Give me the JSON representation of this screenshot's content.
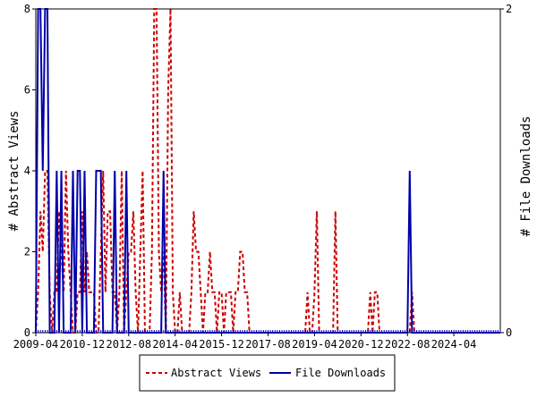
{
  "chart_data": {
    "type": "line",
    "title": "",
    "xlabel": "",
    "ylabel_left": "# Abstract Views",
    "ylabel_right": "# File Downloads",
    "ylim_left": [
      0,
      8
    ],
    "ylim_right": [
      0,
      2
    ],
    "yticks_left": [
      "0",
      "2",
      "4",
      "6",
      "8"
    ],
    "yticks_right": [
      "0",
      "2"
    ],
    "xlim": [
      "2009-04",
      "2025-12"
    ],
    "xticks": [
      "2009-04",
      "2010-12",
      "2012-08",
      "2014-04",
      "2015-12",
      "2017-08",
      "2019-04",
      "2020-12",
      "2022-08",
      "2024-04"
    ],
    "grid": false,
    "legend_position": "bottom",
    "series": [
      {
        "name": "Abstract Views",
        "axis": "left",
        "color": "#cc0000",
        "style": "dashed",
        "points": [
          [
            "2009-04",
            0
          ],
          [
            "2009-05",
            1
          ],
          [
            "2009-06",
            3
          ],
          [
            "2009-07",
            2
          ],
          [
            "2009-08",
            4
          ],
          [
            "2009-09",
            4
          ],
          [
            "2009-10",
            1
          ],
          [
            "2009-11",
            0
          ],
          [
            "2009-12",
            1
          ],
          [
            "2010-01",
            1
          ],
          [
            "2010-02",
            3
          ],
          [
            "2010-03",
            2
          ],
          [
            "2010-04",
            1
          ],
          [
            "2010-05",
            4
          ],
          [
            "2010-06",
            2
          ],
          [
            "2010-07",
            1
          ],
          [
            "2010-08",
            0
          ],
          [
            "2010-09",
            0
          ],
          [
            "2010-10",
            1
          ],
          [
            "2010-11",
            1
          ],
          [
            "2010-12",
            3
          ],
          [
            "2010-13",
            1
          ],
          [
            "2011-01",
            1
          ],
          [
            "2011-02",
            2
          ],
          [
            "2011-03",
            1
          ],
          [
            "2011-04",
            1
          ],
          [
            "2011-05",
            1
          ],
          [
            "2011-06",
            0
          ],
          [
            "2011-07",
            0
          ],
          [
            "2011-08",
            2
          ],
          [
            "2011-09",
            4
          ],
          [
            "2011-10",
            1
          ],
          [
            "2011-11",
            3
          ],
          [
            "2011-12",
            3
          ],
          [
            "2012-01",
            1
          ],
          [
            "2012-02",
            1
          ],
          [
            "2012-03",
            0
          ],
          [
            "2012-04",
            1
          ],
          [
            "2012-05",
            4
          ],
          [
            "2012-06",
            0
          ],
          [
            "2012-07",
            1
          ],
          [
            "2012-08",
            2
          ],
          [
            "2012-09",
            2
          ],
          [
            "2012-10",
            3
          ],
          [
            "2012-11",
            1
          ],
          [
            "2012-12",
            0
          ],
          [
            "2013-01",
            2
          ],
          [
            "2013-02",
            4
          ],
          [
            "2013-03",
            0
          ],
          [
            "2013-04",
            0
          ],
          [
            "2013-05",
            0
          ],
          [
            "2013-06",
            2
          ],
          [
            "2013-07",
            8
          ],
          [
            "2013-08",
            8
          ],
          [
            "2013-09",
            2
          ],
          [
            "2013-10",
            1
          ],
          [
            "2013-11",
            2
          ],
          [
            "2013-12",
            0
          ],
          [
            "2014-01",
            6
          ],
          [
            "2014-02",
            8
          ],
          [
            "2014-03",
            1
          ],
          [
            "2014-04",
            0
          ],
          [
            "2014-05",
            0
          ],
          [
            "2014-06",
            1
          ],
          [
            "2014-07",
            0
          ],
          [
            "2014-08",
            0
          ],
          [
            "2014-09",
            0
          ],
          [
            "2014-10",
            0
          ],
          [
            "2014-11",
            1
          ],
          [
            "2014-12",
            3
          ],
          [
            "2015-01",
            2
          ],
          [
            "2015-02",
            2
          ],
          [
            "2015-03",
            1
          ],
          [
            "2015-04",
            0
          ],
          [
            "2015-05",
            1
          ],
          [
            "2015-06",
            1
          ],
          [
            "2015-07",
            2
          ],
          [
            "2015-08",
            1
          ],
          [
            "2015-09",
            1
          ],
          [
            "2015-10",
            0
          ],
          [
            "2015-11",
            1
          ],
          [
            "2015-12",
            1
          ],
          [
            "2016-01",
            0
          ],
          [
            "2016-02",
            1
          ],
          [
            "2016-03",
            1
          ],
          [
            "2016-04",
            1
          ],
          [
            "2016-05",
            0
          ],
          [
            "2016-06",
            1
          ],
          [
            "2016-07",
            1
          ],
          [
            "2016-08",
            2
          ],
          [
            "2016-09",
            2
          ],
          [
            "2016-10",
            1
          ],
          [
            "2016-11",
            1
          ],
          [
            "2016-12",
            0
          ],
          [
            "2018-12",
            0
          ],
          [
            "2019-01",
            1
          ],
          [
            "2019-02",
            0
          ],
          [
            "2019-03",
            0
          ],
          [
            "2019-04",
            1
          ],
          [
            "2019-05",
            3
          ],
          [
            "2019-06",
            0
          ],
          [
            "2019-12",
            0
          ],
          [
            "2020-01",
            3
          ],
          [
            "2020-02",
            0
          ],
          [
            "2021-03",
            0
          ],
          [
            "2021-04",
            1
          ],
          [
            "2021-05",
            0
          ],
          [
            "2021-06",
            1
          ],
          [
            "2021-07",
            1
          ],
          [
            "2021-08",
            0
          ],
          [
            "2022-09",
            0
          ],
          [
            "2022-10",
            1
          ],
          [
            "2022-11",
            0
          ],
          [
            "2025-12",
            0
          ]
        ]
      },
      {
        "name": "File Downloads",
        "axis": "right",
        "color": "#0000aa",
        "style": "solid",
        "points": [
          [
            "2009-04",
            0
          ],
          [
            "2009-05",
            2
          ],
          [
            "2009-06",
            2
          ],
          [
            "2009-07",
            1
          ],
          [
            "2009-08",
            2
          ],
          [
            "2009-09",
            2
          ],
          [
            "2009-10",
            0
          ],
          [
            "2009-11",
            0
          ],
          [
            "2009-12",
            0
          ],
          [
            "2010-01",
            1
          ],
          [
            "2010-02",
            0
          ],
          [
            "2010-03",
            1
          ],
          [
            "2010-04",
            0
          ],
          [
            "2010-05",
            0
          ],
          [
            "2010-06",
            0
          ],
          [
            "2010-07",
            0
          ],
          [
            "2010-08",
            1
          ],
          [
            "2010-09",
            0
          ],
          [
            "2010-10",
            1
          ],
          [
            "2010-11",
            1
          ],
          [
            "2010-12",
            0
          ],
          [
            "2011-01",
            1
          ],
          [
            "2011-02",
            0
          ],
          [
            "2011-03",
            0
          ],
          [
            "2011-04",
            0
          ],
          [
            "2011-05",
            0
          ],
          [
            "2011-06",
            1
          ],
          [
            "2011-07",
            1
          ],
          [
            "2011-08",
            1
          ],
          [
            "2011-09",
            0
          ],
          [
            "2011-10",
            0
          ],
          [
            "2011-11",
            0
          ],
          [
            "2011-12",
            0
          ],
          [
            "2012-01",
            0
          ],
          [
            "2012-02",
            1
          ],
          [
            "2012-03",
            0
          ],
          [
            "2012-04",
            0
          ],
          [
            "2012-05",
            0
          ],
          [
            "2012-06",
            0
          ],
          [
            "2012-07",
            1
          ],
          [
            "2012-08",
            0
          ],
          [
            "2012-09",
            0
          ],
          [
            "2012-10",
            0
          ],
          [
            "2012-11",
            0
          ],
          [
            "2012-12",
            0
          ],
          [
            "2013-01",
            0
          ],
          [
            "2013-02",
            0
          ],
          [
            "2013-03",
            0
          ],
          [
            "2013-04",
            0
          ],
          [
            "2013-05",
            0
          ],
          [
            "2013-06",
            0
          ],
          [
            "2013-07",
            0
          ],
          [
            "2013-08",
            0
          ],
          [
            "2013-09",
            0
          ],
          [
            "2013-10",
            0
          ],
          [
            "2013-11",
            1
          ],
          [
            "2013-12",
            0
          ],
          [
            "2014-01",
            0
          ],
          [
            "2022-08",
            0
          ],
          [
            "2022-09",
            1
          ],
          [
            "2022-10",
            0
          ],
          [
            "2025-12",
            0
          ]
        ]
      }
    ]
  }
}
